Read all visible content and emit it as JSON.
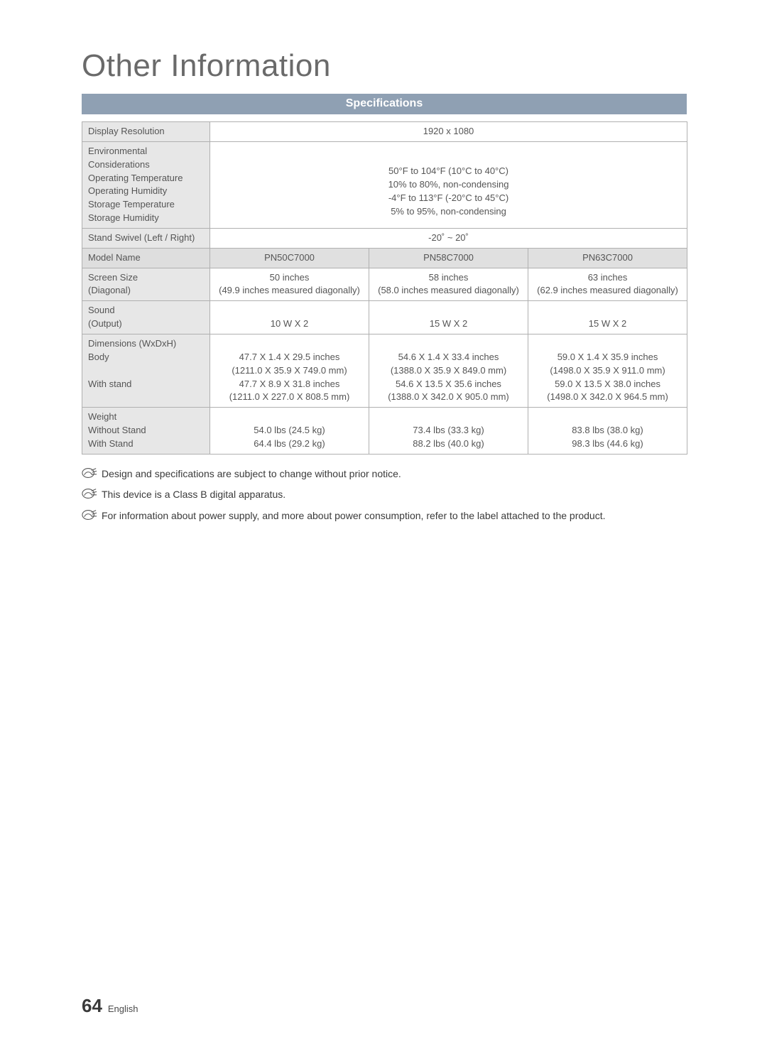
{
  "colors": {
    "page_bg": "#ffffff",
    "text": "#4a4a4a",
    "title_text": "#6a6a6a",
    "section_header_bg": "#8fa0b3",
    "section_header_text": "#ffffff",
    "table_border": "#b0b0b0",
    "label_cell_bg": "#e7e7e7",
    "header_cell_bg": "#e0e0e0",
    "note_text": "#3a3a3a"
  },
  "page_title": "Other Information",
  "section_header": "Specifications",
  "table": {
    "rows": [
      {
        "label_lines": [
          "Display Resolution"
        ],
        "colspan": 3,
        "value_lines": [
          "1920 x 1080"
        ]
      },
      {
        "label_lines": [
          "Environmental Considerations",
          "Operating Temperature",
          "Operating Humidity",
          "Storage Temperature",
          "Storage Humidity"
        ],
        "colspan": 3,
        "value_lines": [
          "",
          "50°F to 104°F (10°C to 40°C)",
          "10% to 80%, non-condensing",
          "-4°F to 113°F (-20°C to 45°C)",
          "5% to 95%, non-condensing"
        ]
      },
      {
        "label_lines": [
          "Stand Swivel (Left / Right)"
        ],
        "colspan": 3,
        "value_lines": [
          "-20˚ ~ 20˚"
        ]
      },
      {
        "header_row": true,
        "label_lines": [
          "Model Name"
        ],
        "cells": [
          [
            "PN50C7000"
          ],
          [
            "PN58C7000"
          ],
          [
            "PN63C7000"
          ]
        ]
      },
      {
        "label_lines": [
          "Screen Size",
          "(Diagonal)"
        ],
        "cells": [
          [
            "50 inches",
            "(49.9 inches measured diagonally)"
          ],
          [
            "58 inches",
            "(58.0 inches measured diagonally)"
          ],
          [
            "63 inches",
            "(62.9 inches measured diagonally)"
          ]
        ]
      },
      {
        "label_lines": [
          "Sound",
          "(Output)"
        ],
        "cells": [
          [
            "",
            "10 W X 2"
          ],
          [
            "",
            "15 W X 2"
          ],
          [
            "",
            "15 W X 2"
          ]
        ]
      },
      {
        "label_lines": [
          "Dimensions (WxDxH)",
          "Body",
          "",
          "With stand",
          ""
        ],
        "cells": [
          [
            "",
            "47.7 X 1.4 X 29.5 inches",
            "(1211.0 X 35.9 X 749.0 mm)",
            "47.7 X 8.9 X 31.8 inches",
            "(1211.0 X 227.0 X 808.5 mm)"
          ],
          [
            "",
            "54.6 X 1.4 X 33.4 inches",
            "(1388.0 X 35.9 X 849.0 mm)",
            "54.6 X 13.5 X 35.6 inches",
            "(1388.0 X 342.0 X 905.0 mm)"
          ],
          [
            "",
            "59.0 X 1.4 X 35.9 inches",
            "(1498.0 X 35.9 X 911.0 mm)",
            "59.0 X 13.5 X 38.0 inches",
            "(1498.0 X 342.0 X 964.5 mm)"
          ]
        ]
      },
      {
        "label_lines": [
          "Weight",
          "Without Stand",
          "With Stand"
        ],
        "cells": [
          [
            "",
            "54.0 lbs (24.5 kg)",
            "64.4 lbs (29.2 kg)"
          ],
          [
            "",
            "73.4 lbs (33.3 kg)",
            "88.2 lbs (40.0 kg)"
          ],
          [
            "",
            "83.8 lbs (38.0 kg)",
            "98.3 lbs (44.6 kg)"
          ]
        ]
      }
    ]
  },
  "notes": [
    "Design and specifications are subject to change without prior notice.",
    "This device is a Class B digital apparatus.",
    "For information about power supply, and more about power consumption, refer to the label attached to the product."
  ],
  "footer": {
    "page_number": "64",
    "language": "English"
  }
}
